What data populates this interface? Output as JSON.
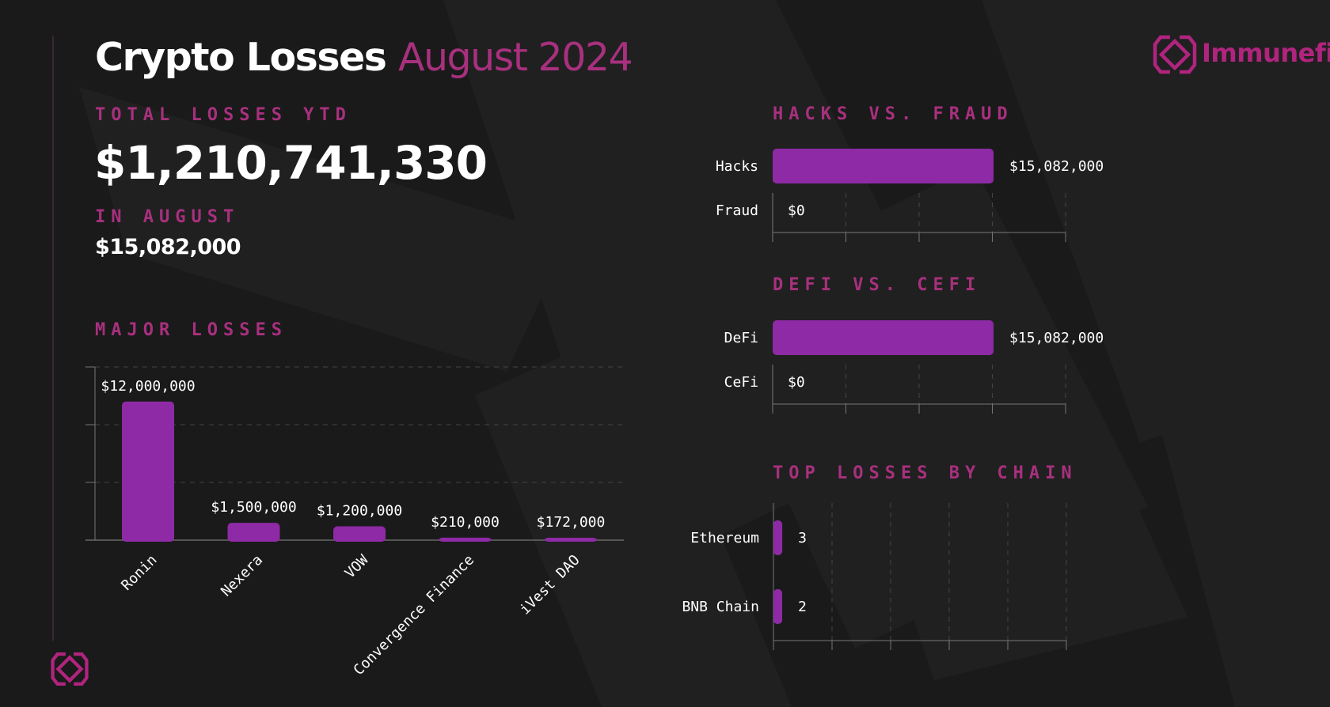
{
  "header": {
    "title_main": "Crypto Losses",
    "title_accent": "August 2024",
    "brand": "Immunefi"
  },
  "summary": {
    "ytd_label": "TOTAL LOSSES YTD",
    "ytd_value": "$1,210,741,330",
    "month_label": "IN AUGUST",
    "month_value": "$15,082,000"
  },
  "colors": {
    "bar": "#8e2aa5",
    "accent": "#a8307e",
    "background": "#1a1a1a",
    "logo": "#b0247e"
  },
  "chart_data": [
    {
      "type": "bar",
      "title": "MAJOR LOSSES",
      "categories": [
        "Ronin",
        "Nexera",
        "VOW",
        "Convergence Finance",
        "iVest DAO"
      ],
      "values": [
        12000000,
        1500000,
        1200000,
        210000,
        172000
      ],
      "data_labels": [
        "$12,000,000",
        "$1,500,000",
        "$1,200,000",
        "$210,000",
        "$172,000"
      ],
      "ylim": [
        0,
        15000000
      ],
      "grid": true
    },
    {
      "type": "bar",
      "orientation": "horizontal",
      "title": "HACKS VS. FRAUD",
      "categories": [
        "Hacks",
        "Fraud"
      ],
      "values": [
        15082000,
        0
      ],
      "data_labels": [
        "$15,082,000",
        "$0"
      ],
      "xlim": [
        0,
        20000000
      ],
      "grid": true
    },
    {
      "type": "bar",
      "orientation": "horizontal",
      "title": "DEFI VS. CEFI",
      "categories": [
        "DeFi",
        "CeFi"
      ],
      "values": [
        15082000,
        0
      ],
      "data_labels": [
        "$15,082,000",
        "$0"
      ],
      "xlim": [
        0,
        20000000
      ],
      "grid": true
    },
    {
      "type": "bar",
      "orientation": "horizontal",
      "title": "TOP LOSSES BY CHAIN",
      "categories": [
        "Ethereum",
        "BNB Chain"
      ],
      "values": [
        3,
        2
      ],
      "data_labels": [
        "3",
        "2"
      ],
      "xlim": [
        0,
        100
      ],
      "grid": true
    }
  ]
}
